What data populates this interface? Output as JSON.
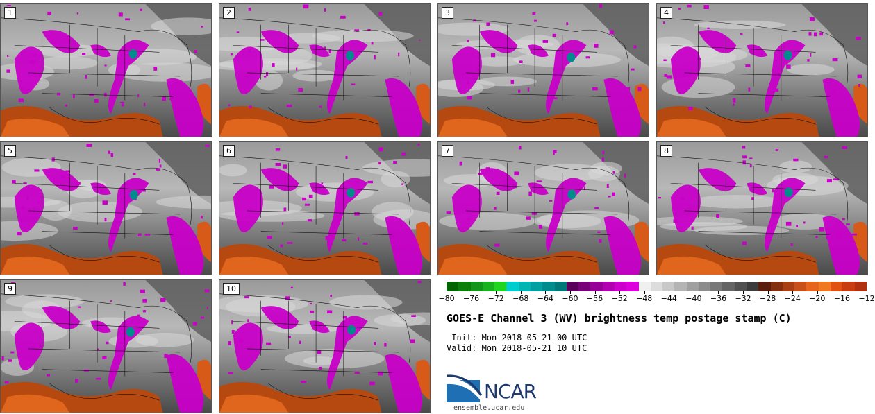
{
  "panels": [
    {
      "label": "1"
    },
    {
      "label": "2"
    },
    {
      "label": "3"
    },
    {
      "label": "4"
    },
    {
      "label": "5"
    },
    {
      "label": "6"
    },
    {
      "label": "7"
    },
    {
      "label": "8"
    },
    {
      "label": "9"
    },
    {
      "label": "10"
    }
  ],
  "colorbar": {
    "colors": [
      "#006400",
      "#0a7d0a",
      "#12951a",
      "#18b21e",
      "#1fd51f",
      "#00cdcd",
      "#00b4b4",
      "#00a0a0",
      "#008c8c",
      "#007878",
      "#5a005a",
      "#780078",
      "#960096",
      "#b000b0",
      "#cc00cc",
      "#dc00dc",
      "#f0f0f0",
      "#dcdcdc",
      "#c8c8c8",
      "#b4b4b4",
      "#a0a0a0",
      "#8c8c8c",
      "#787878",
      "#646464",
      "#505050",
      "#3c3c3c",
      "#5a1e0a",
      "#82300f",
      "#a84014",
      "#c8501a",
      "#e6641e",
      "#f07820",
      "#e05010",
      "#c83c10",
      "#b03010"
    ],
    "ticks": [
      "-80",
      "-76",
      "-72",
      "-68",
      "-64",
      "-60",
      "-56",
      "-52",
      "-48",
      "-44",
      "-40",
      "-36",
      "-32",
      "-28",
      "-24",
      "-20",
      "-16",
      "-12"
    ]
  },
  "title": "GOES-E Channel 3 (WV) brightness temp postage stamp (C)",
  "init_line": " Init: Mon 2018-05-21 00 UTC",
  "valid_line": "Valid: Mon 2018-05-21 10 UTC",
  "logo": {
    "text": "NCAR",
    "url": "ensemble.ucar.edu"
  }
}
